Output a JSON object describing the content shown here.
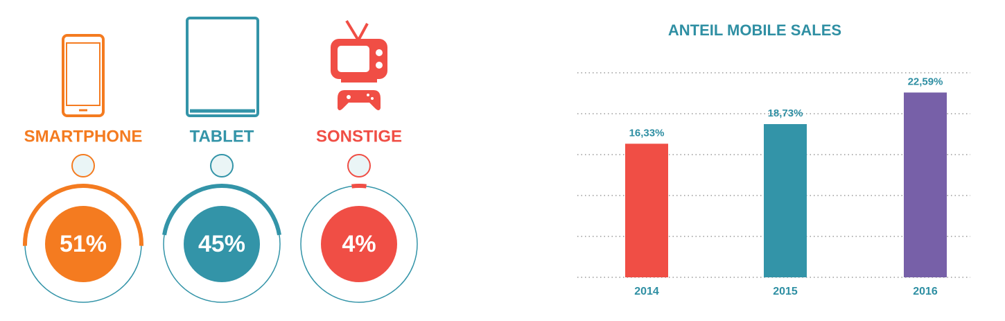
{
  "chart_data": [
    {
      "type": "gauge",
      "categories": [
        "SMARTPHONE",
        "TABLET",
        "SONSTIGE"
      ],
      "values": [
        51,
        45,
        4
      ],
      "value_labels": [
        "51%",
        "45%",
        "4%"
      ],
      "colors": [
        "#f47b20",
        "#3394a8",
        "#f04e45"
      ]
    },
    {
      "type": "bar",
      "title": "ANTEIL MOBILE SALES",
      "categories": [
        "2014",
        "2015",
        "2016"
      ],
      "values": [
        16.33,
        18.73,
        22.59
      ],
      "value_labels": [
        "16,33%",
        "18,73%",
        "22,59%"
      ],
      "colors": [
        "#f04e45",
        "#3394a8",
        "#7760a8"
      ],
      "ylim": [
        0,
        25
      ],
      "yticks": [
        0,
        5,
        10,
        15,
        20,
        25
      ],
      "grid": true
    }
  ]
}
